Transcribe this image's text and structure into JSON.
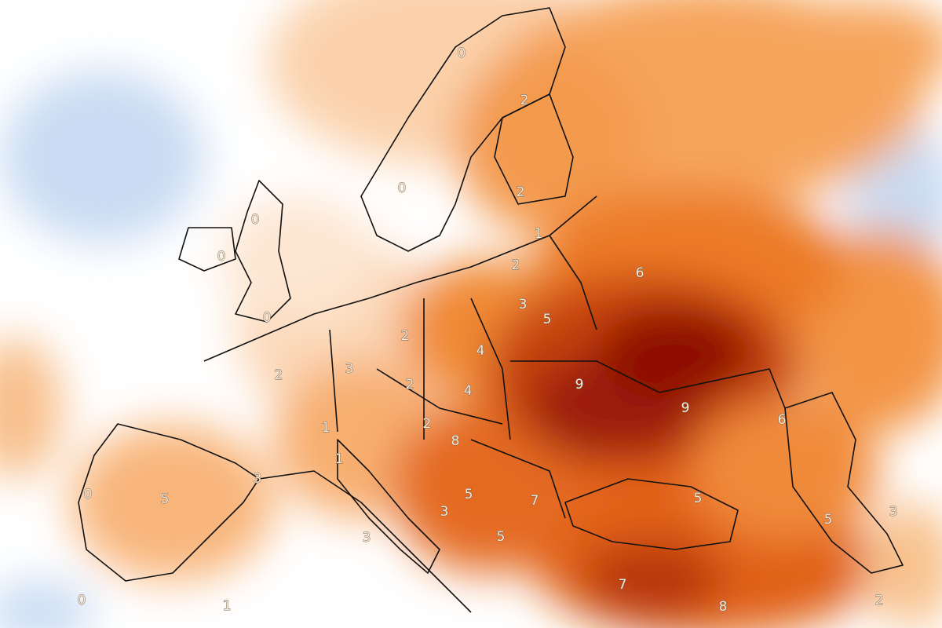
{
  "map": {
    "labels": [
      0,
      2,
      0,
      2,
      1,
      0,
      0,
      2,
      6,
      0,
      3,
      5,
      2,
      4,
      3,
      2,
      9,
      2,
      4,
      9,
      6,
      2,
      1,
      8,
      1,
      3,
      0,
      5,
      5,
      7,
      5,
      3,
      5,
      3,
      3,
      5,
      7,
      0,
      1,
      8,
      2
    ]
  }
}
